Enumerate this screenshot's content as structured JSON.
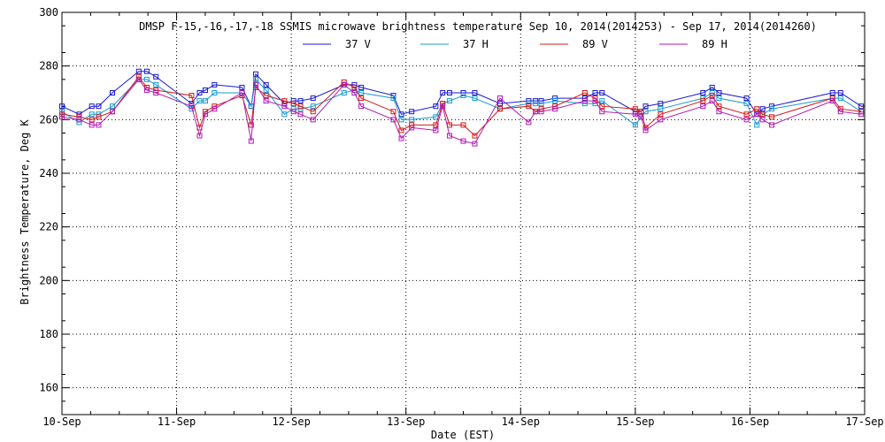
{
  "chart_data": {
    "type": "line",
    "title": "DMSP F-15,-16,-17,-18 SSMIS microwave brightness temperature Sep 10, 2014(2014253) - Sep 17, 2014(2014260)",
    "xlabel": "Date (EST)",
    "ylabel": "Brightness Temperature, Deg K",
    "xlim": [
      0,
      7
    ],
    "ylim": [
      150,
      300
    ],
    "x_ticks": [
      "10-Sep",
      "11-Sep",
      "12-Sep",
      "13-Sep",
      "14-Sep",
      "15-Sep",
      "16-Sep",
      "17-Sep"
    ],
    "y_ticks": [
      160,
      180,
      200,
      220,
      240,
      260,
      280,
      300
    ],
    "grid": true,
    "legend_position": "top",
    "series": [
      {
        "name": "37 V",
        "color": "#1a1acc",
        "x": [
          0.0,
          0.15,
          0.26,
          0.32,
          0.44,
          0.67,
          0.74,
          0.82,
          1.13,
          1.2,
          1.25,
          1.33,
          1.57,
          1.65,
          1.69,
          1.78,
          1.94,
          2.02,
          2.08,
          2.19,
          2.46,
          2.55,
          2.61,
          2.89,
          2.96,
          3.05,
          3.26,
          3.32,
          3.38,
          3.5,
          3.6,
          3.82,
          4.07,
          4.13,
          4.18,
          4.3,
          4.56,
          4.65,
          4.71,
          5.0,
          5.05,
          5.09,
          5.22,
          5.59,
          5.67,
          5.73,
          5.97,
          6.06,
          6.11,
          6.19,
          6.72,
          6.79,
          6.97
        ],
        "y": [
          265,
          262,
          265,
          265,
          270,
          278,
          278,
          276,
          266,
          270,
          271,
          273,
          272,
          265,
          277,
          273,
          266,
          267,
          267,
          268,
          273,
          273,
          272,
          269,
          262,
          263,
          265,
          270,
          270,
          270,
          270,
          266,
          267,
          267,
          267,
          268,
          268,
          270,
          270,
          263,
          263,
          265,
          266,
          270,
          272,
          270,
          268,
          262,
          264,
          265,
          270,
          270,
          265
        ]
      },
      {
        "name": "37 H",
        "color": "#1a9ad2",
        "x": [
          0.0,
          0.15,
          0.26,
          0.32,
          0.44,
          0.67,
          0.74,
          0.82,
          1.13,
          1.2,
          1.25,
          1.33,
          1.57,
          1.65,
          1.69,
          1.78,
          1.94,
          2.02,
          2.08,
          2.19,
          2.46,
          2.55,
          2.61,
          2.89,
          2.96,
          3.05,
          3.26,
          3.32,
          3.38,
          3.5,
          3.6,
          3.82,
          4.07,
          4.13,
          4.18,
          4.3,
          4.56,
          4.65,
          4.71,
          5.0,
          5.05,
          5.09,
          5.22,
          5.59,
          5.67,
          5.73,
          5.97,
          6.06,
          6.11,
          6.19,
          6.72,
          6.79,
          6.97
        ],
        "y": [
          263,
          259,
          262,
          262,
          265,
          275,
          275,
          273,
          264,
          267,
          267,
          270,
          270,
          265,
          275,
          271,
          262,
          264,
          264,
          265,
          270,
          271,
          270,
          268,
          260,
          260,
          261,
          266,
          267,
          269,
          268,
          264,
          266,
          266,
          266,
          267,
          266,
          266,
          267,
          258,
          261,
          263,
          264,
          268,
          270,
          268,
          266,
          258,
          262,
          264,
          268,
          268,
          263
        ]
      },
      {
        "name": "89 V",
        "color": "#d21a1a",
        "x": [
          0.0,
          0.15,
          0.26,
          0.32,
          0.44,
          0.67,
          0.74,
          0.82,
          1.13,
          1.2,
          1.25,
          1.33,
          1.57,
          1.65,
          1.69,
          1.78,
          1.94,
          2.02,
          2.08,
          2.19,
          2.46,
          2.55,
          2.61,
          2.89,
          2.96,
          3.05,
          3.26,
          3.32,
          3.38,
          3.5,
          3.6,
          3.82,
          4.07,
          4.13,
          4.18,
          4.3,
          4.56,
          4.65,
          4.71,
          5.0,
          5.05,
          5.09,
          5.22,
          5.59,
          5.67,
          5.73,
          5.97,
          6.06,
          6.11,
          6.19,
          6.72,
          6.79,
          6.97
        ],
        "y": [
          262,
          261,
          260,
          261,
          263,
          276,
          272,
          271,
          269,
          257,
          263,
          265,
          269,
          258,
          272,
          269,
          267,
          266,
          265,
          263,
          274,
          272,
          268,
          263,
          256,
          258,
          258,
          266,
          258,
          258,
          254,
          264,
          265,
          263,
          264,
          265,
          270,
          268,
          265,
          264,
          263,
          257,
          262,
          267,
          269,
          265,
          262,
          264,
          262,
          261,
          268,
          264,
          263
        ]
      },
      {
        "name": "89 H",
        "color": "#b01ab0",
        "x": [
          0.0,
          0.15,
          0.26,
          0.32,
          0.44,
          0.67,
          0.74,
          0.82,
          1.13,
          1.2,
          1.25,
          1.33,
          1.57,
          1.65,
          1.69,
          1.78,
          1.94,
          2.02,
          2.08,
          2.19,
          2.46,
          2.55,
          2.61,
          2.89,
          2.96,
          3.05,
          3.26,
          3.32,
          3.38,
          3.5,
          3.6,
          3.82,
          4.07,
          4.13,
          4.18,
          4.3,
          4.56,
          4.65,
          4.71,
          5.0,
          5.05,
          5.09,
          5.22,
          5.59,
          5.67,
          5.73,
          5.97,
          6.06,
          6.11,
          6.19,
          6.72,
          6.79,
          6.97
        ],
        "y": [
          261,
          260,
          258,
          258,
          263,
          275,
          271,
          270,
          265,
          254,
          262,
          264,
          270,
          252,
          273,
          267,
          265,
          263,
          262,
          260,
          273,
          270,
          265,
          260,
          253,
          257,
          256,
          265,
          254,
          252,
          251,
          268,
          259,
          263,
          263,
          264,
          267,
          267,
          263,
          262,
          261,
          256,
          260,
          265,
          267,
          263,
          260,
          262,
          260,
          258,
          267,
          263,
          262
        ]
      }
    ]
  }
}
